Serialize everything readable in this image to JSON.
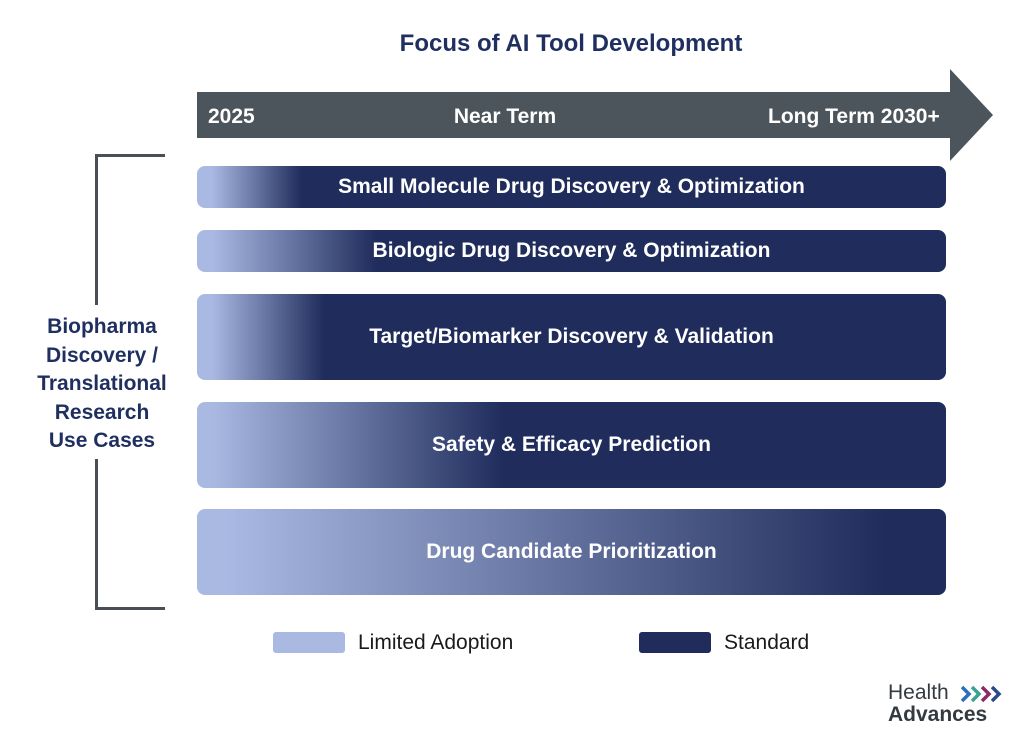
{
  "title": "Focus of AI Tool Development",
  "timeline": {
    "start_label": "2025",
    "mid_label": "Near Term",
    "end_label": "Long Term 2030+",
    "color": "#4d555c"
  },
  "side_label": {
    "lines": [
      "Biopharma",
      "Discovery /",
      "Translational",
      "Research",
      "Use Cases"
    ]
  },
  "bands": [
    {
      "label": "Small Molecule Drug Discovery & Optimization"
    },
    {
      "label": "Biologic Drug Discovery & Optimization"
    },
    {
      "label": "Target/Biomarker Discovery & Validation"
    },
    {
      "label": "Safety & Efficacy Prediction"
    },
    {
      "label": "Drug Candidate Prioritization"
    }
  ],
  "legend": {
    "limited": {
      "label": "Limited Adoption",
      "color": "#a9b9e2"
    },
    "standard": {
      "label": "Standard",
      "color": "#1f2c5c"
    }
  },
  "logo": {
    "line1": "Health",
    "line2": "Advances",
    "chevron_colors": [
      "#2a6fb8",
      "#3aa38f",
      "#8a2a6b",
      "#2c4a8a"
    ]
  }
}
